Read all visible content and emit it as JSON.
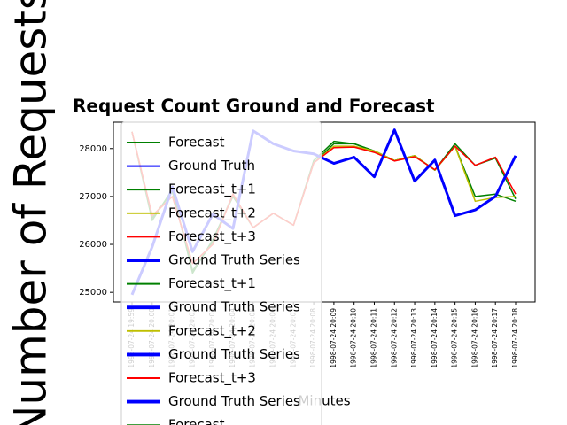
{
  "chart_data": {
    "type": "line",
    "title": "Request Count Ground and Forecast",
    "x_label": "Minutes",
    "y_label": "Number of Requests",
    "categories": [
      "1998-07-24 19:59",
      "1998-07-24 20:00",
      "1998-07-24 20:01",
      "1998-07-24 20:02",
      "1998-07-24 20:03",
      "1998-07-24 20:04",
      "1998-07-24 20:05",
      "1998-07-24 20:06",
      "1998-07-24 20:07",
      "1998-07-24 20:08",
      "1998-07-24 20:09",
      "1998-07-24 20:10",
      "1998-07-24 20:11",
      "1998-07-24 20:12",
      "1998-07-24 20:13",
      "1998-07-24 20:14",
      "1998-07-24 20:15",
      "1998-07-24 20:16",
      "1998-07-24 20:17",
      "1998-07-24 20:18"
    ],
    "ylim": [
      24800,
      28550
    ],
    "yticks": [
      25000,
      26000,
      27000,
      28000
    ],
    "series": [
      {
        "name": "Forecast",
        "color": "#008000",
        "width": 1.5,
        "values": [
          28350,
          26500,
          27150,
          25400,
          26100,
          27000,
          26350,
          26650,
          26400,
          27750,
          28150,
          28100,
          27950,
          27750,
          27850,
          27550,
          28100,
          27650,
          27800,
          26950
        ]
      },
      {
        "name": "Forecast_t+1",
        "color": "#008000",
        "width": 1.5,
        "values": [
          28350,
          26550,
          27100,
          25450,
          26050,
          27050,
          26350,
          26650,
          26400,
          27700,
          28100,
          28100,
          27950,
          27750,
          27850,
          27550,
          28050,
          27000,
          27050,
          26900
        ]
      },
      {
        "name": "Forecast_t+2",
        "color": "#bfbf00",
        "width": 1.5,
        "values": [
          28350,
          26600,
          27000,
          25600,
          26000,
          27050,
          26350,
          26650,
          26400,
          27700,
          28050,
          28050,
          27950,
          27750,
          27850,
          27550,
          28050,
          26900,
          26980,
          27000
        ]
      },
      {
        "name": "Forecast_t+3",
        "color": "#ff0000",
        "width": 1.5,
        "values": [
          28350,
          26600,
          27000,
          25600,
          26000,
          27050,
          26350,
          26650,
          26400,
          27700,
          28020,
          28030,
          27920,
          27740,
          27830,
          27560,
          28050,
          27650,
          27820,
          27050
        ]
      },
      {
        "name": "Ground Truth Series",
        "color": "#0000ff",
        "width": 3,
        "values": [
          24950,
          25950,
          27200,
          25850,
          26630,
          26330,
          28370,
          28100,
          27950,
          27890,
          27690,
          27820,
          27410,
          28390,
          27320,
          27760,
          26600,
          26720,
          27000,
          27850
        ]
      }
    ],
    "legend": [
      {
        "name": "Forecast",
        "color": "#008000",
        "width": 1.5
      },
      {
        "name": "Ground Truth",
        "color": "#0000ff",
        "width": 1.5
      },
      {
        "name": "Forecast_t+1",
        "color": "#008000",
        "width": 1.5
      },
      {
        "name": "Forecast_t+2",
        "color": "#bfbf00",
        "width": 1.5
      },
      {
        "name": "Forecast_t+3",
        "color": "#ff0000",
        "width": 1.5
      },
      {
        "name": "Ground Truth Series",
        "color": "#0000ff",
        "width": 3
      },
      {
        "name": "Forecast_t+1",
        "color": "#008000",
        "width": 1.5
      },
      {
        "name": "Ground Truth Series",
        "color": "#0000ff",
        "width": 3
      },
      {
        "name": "Forecast_t+2",
        "color": "#bfbf00",
        "width": 1.5
      },
      {
        "name": "Ground Truth Series",
        "color": "#0000ff",
        "width": 3
      },
      {
        "name": "Forecast_t+3",
        "color": "#ff0000",
        "width": 1.5
      },
      {
        "name": "Ground Truth Series",
        "color": "#0000ff",
        "width": 3
      },
      {
        "name": "Forecast",
        "color": "#008000",
        "width": 1.5
      }
    ]
  }
}
